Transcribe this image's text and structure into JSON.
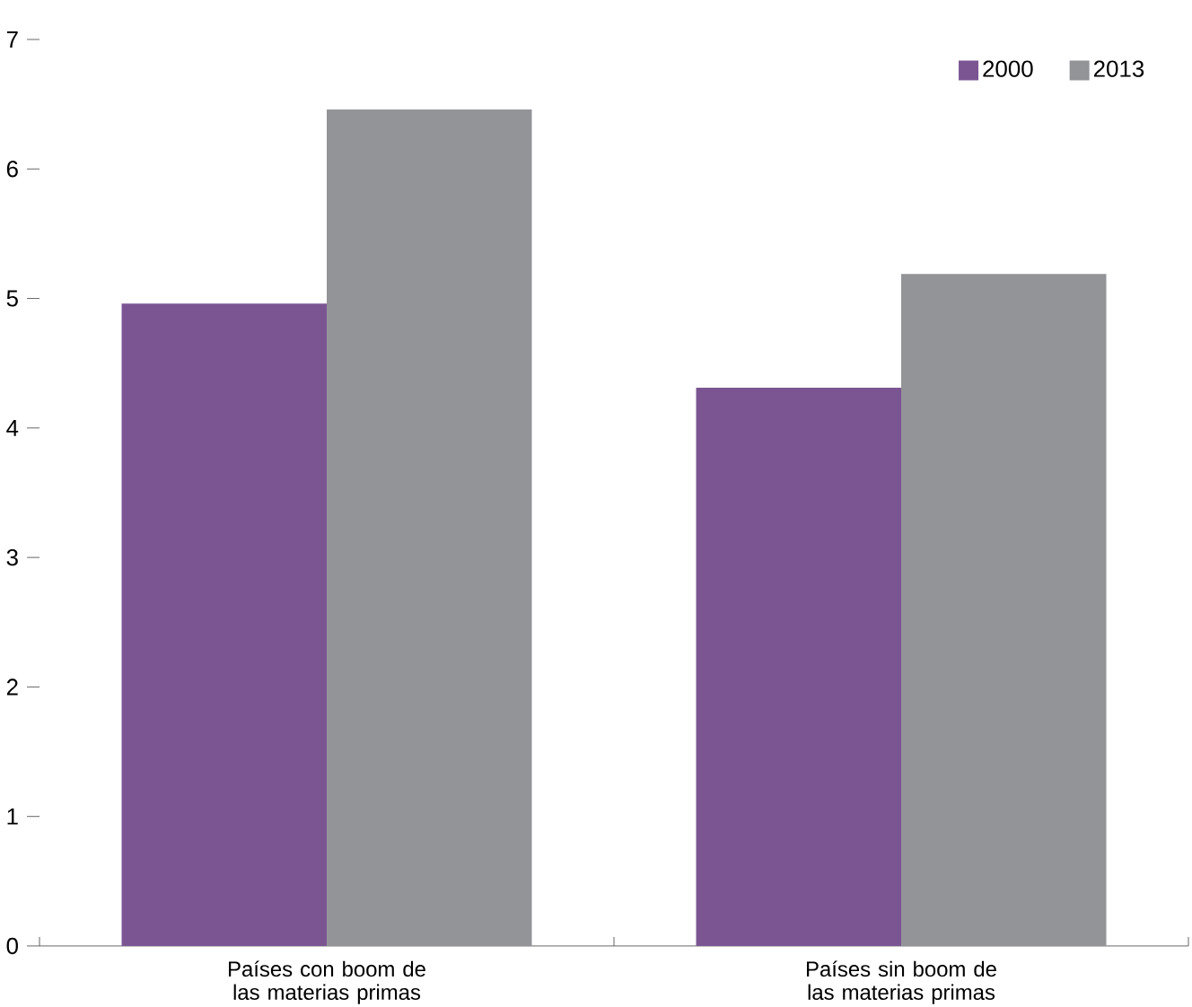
{
  "chart_data": {
    "type": "bar",
    "categories": [
      "Países con boom de las materias primas",
      "Países sin boom de las materias primas"
    ],
    "series": [
      {
        "name": "2000",
        "color": "#7b5592",
        "values": [
          4.96,
          4.31
        ]
      },
      {
        "name": "2013",
        "color": "#939498",
        "values": [
          6.46,
          5.19
        ]
      }
    ],
    "ylim": [
      0,
      7
    ],
    "yticks": [
      0,
      1,
      2,
      3,
      4,
      5,
      6,
      7
    ],
    "grid": false,
    "legend": "top right"
  }
}
